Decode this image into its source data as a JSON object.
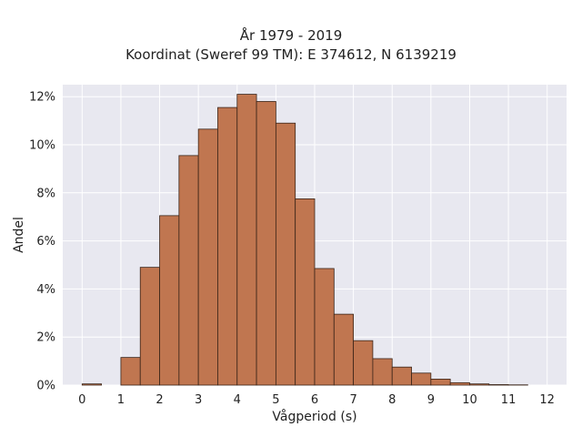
{
  "chart_data": {
    "type": "bar",
    "title": [
      "År 1979 - 2019",
      "Koordinat (Sweref 99 TM): E 374612, N 6139219"
    ],
    "xlabel": "Vågperiod (s)",
    "ylabel": "Andel",
    "xlim": [
      -0.5,
      12.5
    ],
    "ylim": [
      0,
      12.5
    ],
    "x_ticks": [
      0,
      1,
      2,
      3,
      4,
      5,
      6,
      7,
      8,
      9,
      10,
      11,
      12
    ],
    "y_ticks": [
      0,
      2,
      4,
      6,
      8,
      10,
      12
    ],
    "y_tick_labels": [
      "0%",
      "2%",
      "4%",
      "6%",
      "8%",
      "10%",
      "12%"
    ],
    "bin_width": 0.5,
    "bins": [
      {
        "start": 0.0,
        "value": 0.05
      },
      {
        "start": 0.5,
        "value": 0.0
      },
      {
        "start": 1.0,
        "value": 1.15
      },
      {
        "start": 1.5,
        "value": 4.9
      },
      {
        "start": 2.0,
        "value": 7.05
      },
      {
        "start": 2.5,
        "value": 9.55
      },
      {
        "start": 3.0,
        "value": 10.65
      },
      {
        "start": 3.5,
        "value": 11.55
      },
      {
        "start": 4.0,
        "value": 12.1
      },
      {
        "start": 4.5,
        "value": 11.8
      },
      {
        "start": 5.0,
        "value": 10.9
      },
      {
        "start": 5.5,
        "value": 7.75
      },
      {
        "start": 6.0,
        "value": 4.85
      },
      {
        "start": 6.5,
        "value": 2.95
      },
      {
        "start": 7.0,
        "value": 1.85
      },
      {
        "start": 7.5,
        "value": 1.1
      },
      {
        "start": 8.0,
        "value": 0.75
      },
      {
        "start": 8.5,
        "value": 0.5
      },
      {
        "start": 9.0,
        "value": 0.25
      },
      {
        "start": 9.5,
        "value": 0.1
      },
      {
        "start": 10.0,
        "value": 0.05
      },
      {
        "start": 10.5,
        "value": 0.02
      },
      {
        "start": 11.0,
        "value": 0.01
      }
    ],
    "bar_color": "#c07650",
    "bar_edge_color": "#3a2418",
    "plot_background": "#e8e8f0",
    "grid": true,
    "grid_color": "#ffffff"
  }
}
